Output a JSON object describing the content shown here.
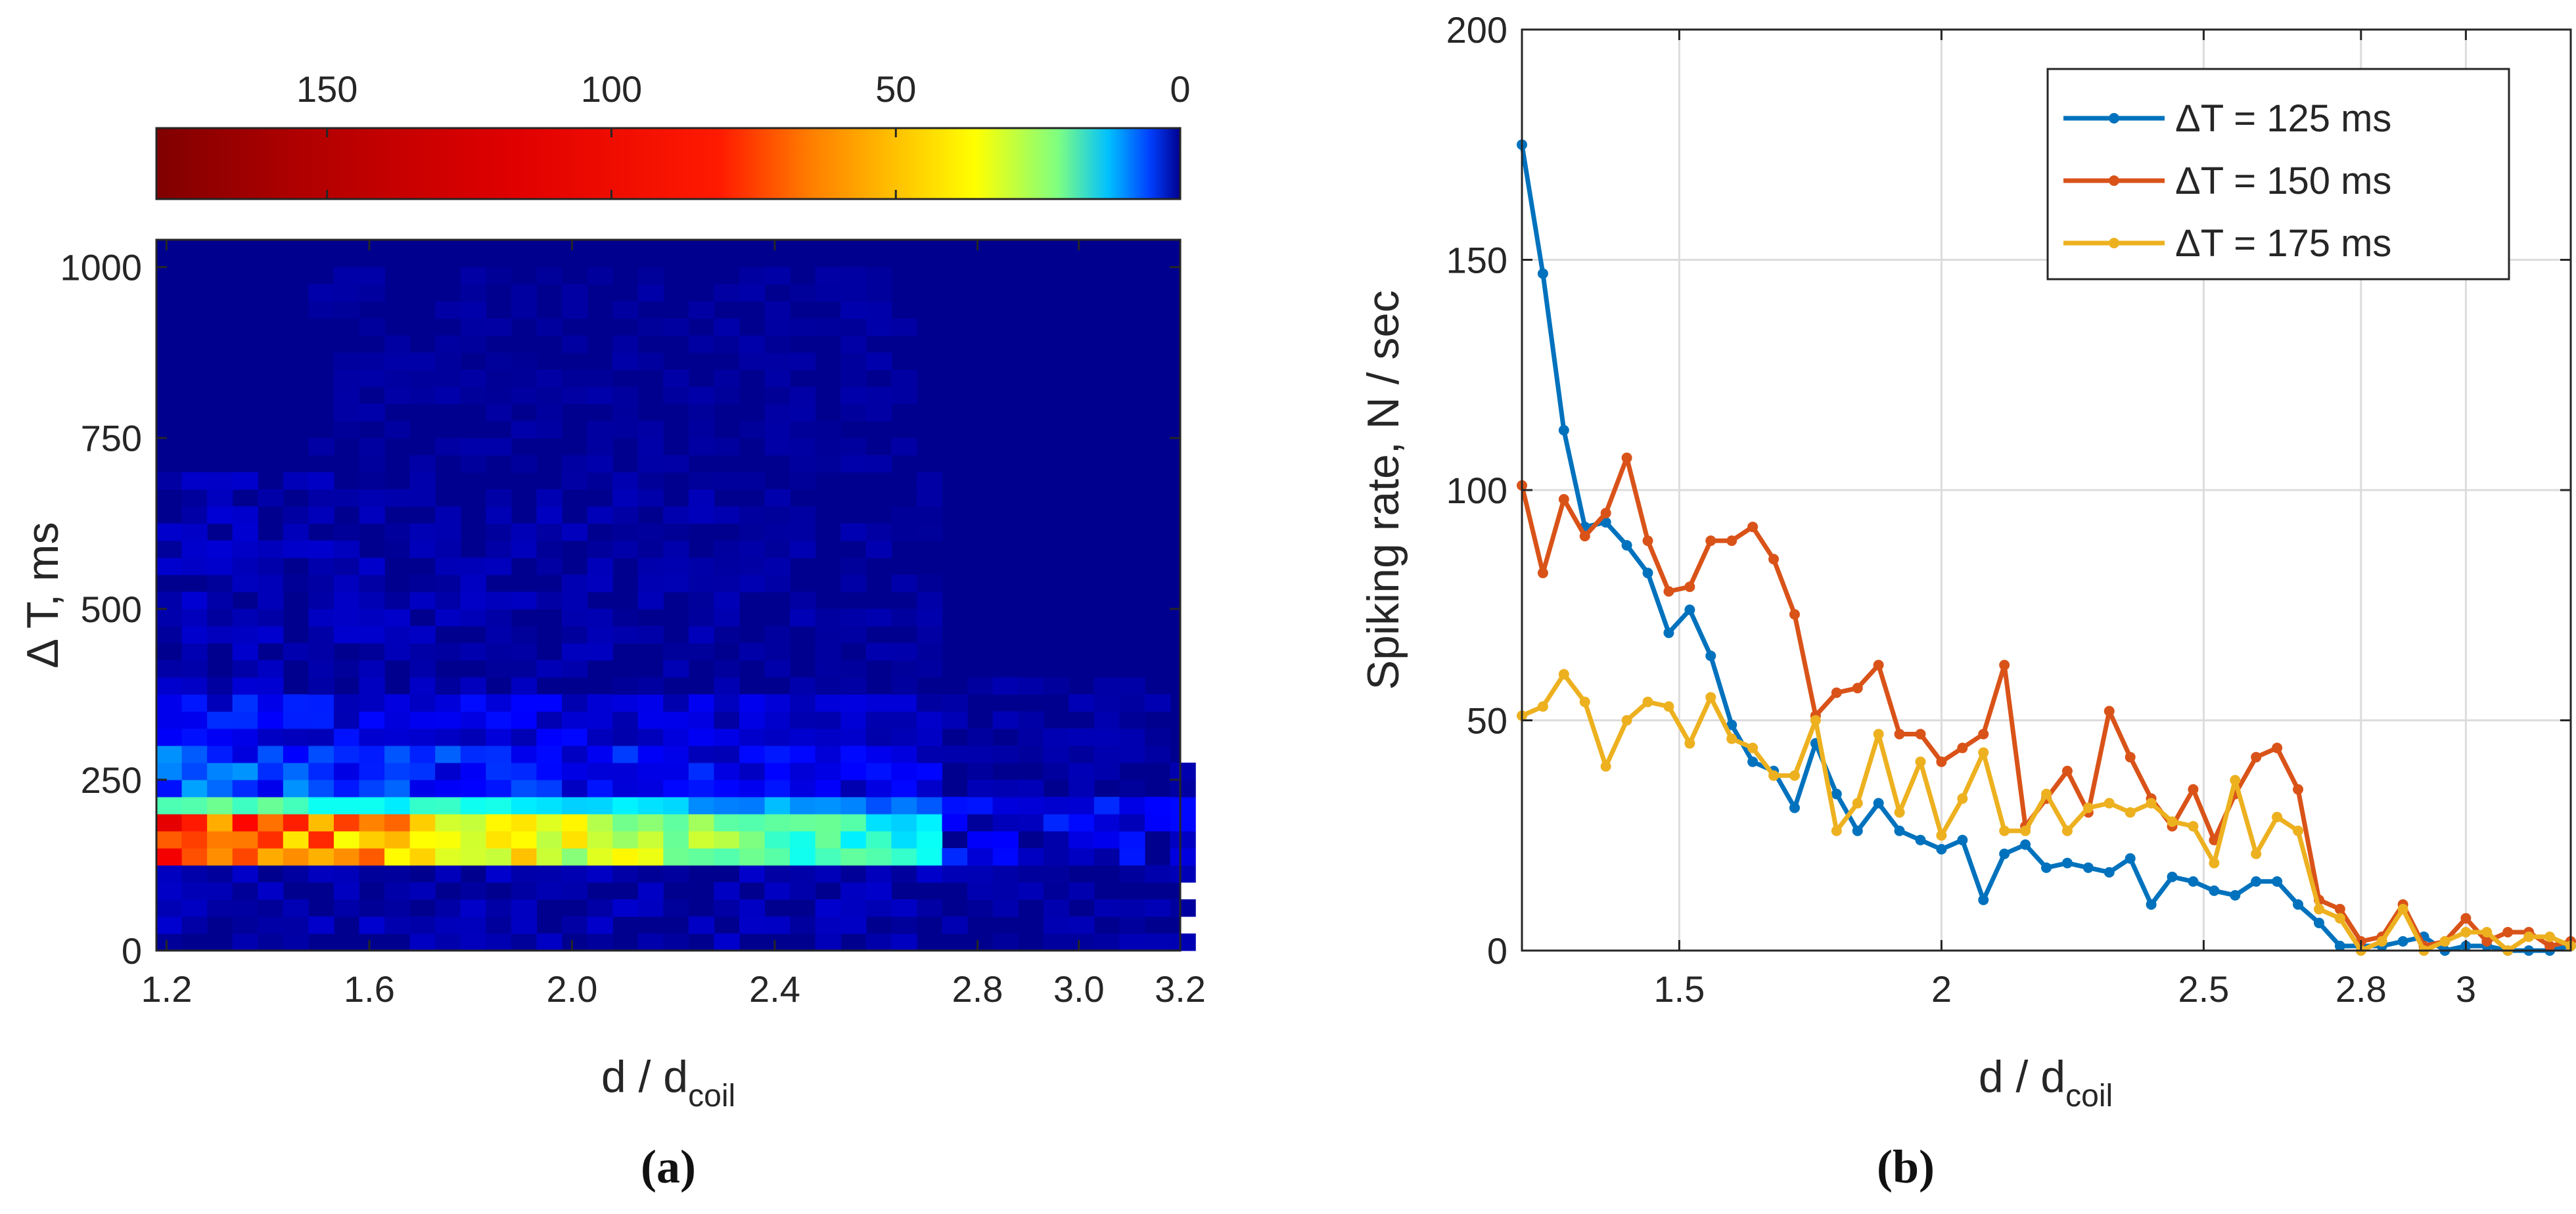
{
  "chart_data": [
    {
      "type": "heatmap",
      "panel_label": "(a)",
      "xlabel": "d / d",
      "xlabel_sub": "coil",
      "ylabel": "Δ T, ms",
      "xlim": [
        1.18,
        3.2
      ],
      "ylim": [
        0,
        1040
      ],
      "xticks": [
        1.2,
        1.6,
        2.0,
        2.4,
        2.8,
        3.0,
        3.2
      ],
      "xtick_labels": [
        "1.2",
        "1.6",
        "2.0",
        "2.4",
        "2.8",
        "3.0",
        "3.2"
      ],
      "yticks": [
        0,
        250,
        500,
        750,
        1000
      ],
      "ytick_labels": [
        "0",
        "250",
        "500",
        "750",
        "1000"
      ],
      "x_bin_width": 0.05,
      "y_bin_width": 25,
      "colorbar": {
        "range": [
          0,
          180
        ],
        "ticks": [
          150,
          100,
          50,
          0
        ],
        "tick_labels": [
          "150",
          "100",
          "50",
          "0"
        ],
        "direction": "reversed",
        "colormap": "jet"
      },
      "grid": false
    },
    {
      "type": "line",
      "panel_label": "(b)",
      "xlabel": "d / d",
      "xlabel_sub": "coil",
      "ylabel": "Spiking rate, N / sec",
      "xlim": [
        1.2,
        3.2
      ],
      "ylim": [
        0,
        200
      ],
      "xticks": [
        1.5,
        2,
        2.5,
        2.8,
        3
      ],
      "xtick_labels": [
        "1.5",
        "2",
        "2.5",
        "2.8",
        "3"
      ],
      "yticks": [
        0,
        50,
        100,
        150,
        200
      ],
      "ytick_labels": [
        "0",
        "50",
        "100",
        "150",
        "200"
      ],
      "grid": true,
      "legend_position": "top-right",
      "x": [
        1.2,
        1.24,
        1.28,
        1.32,
        1.36,
        1.4,
        1.44,
        1.48,
        1.52,
        1.56,
        1.6,
        1.64,
        1.68,
        1.72,
        1.76,
        1.8,
        1.84,
        1.88,
        1.92,
        1.96,
        2.0,
        2.04,
        2.08,
        2.12,
        2.16,
        2.2,
        2.24,
        2.28,
        2.32,
        2.36,
        2.4,
        2.44,
        2.48,
        2.52,
        2.56,
        2.6,
        2.64,
        2.68,
        2.72,
        2.76,
        2.8,
        2.84,
        2.88,
        2.92,
        2.96,
        3.0,
        3.04,
        3.08,
        3.12,
        3.16,
        3.2
      ],
      "series": [
        {
          "name": "ΔT = 125 ms",
          "color": "#0072BD",
          "values": [
            175,
            147,
            113,
            92,
            93,
            88,
            82,
            69,
            74,
            64,
            49,
            41,
            39,
            31,
            45,
            34,
            26,
            32,
            26,
            24,
            22,
            24,
            11,
            21,
            23,
            18,
            19,
            18,
            17,
            20,
            10,
            16,
            15,
            13,
            12,
            15,
            15,
            10,
            6,
            1,
            1,
            1,
            2,
            3,
            0,
            1,
            1,
            0,
            0,
            0,
            1
          ]
        },
        {
          "name": "ΔT = 150 ms",
          "color": "#D95319",
          "values": [
            101,
            82,
            98,
            90,
            95,
            107,
            89,
            78,
            79,
            89,
            89,
            92,
            85,
            73,
            51,
            56,
            57,
            62,
            47,
            47,
            41,
            44,
            47,
            62,
            27,
            33,
            39,
            30,
            52,
            42,
            33,
            27,
            35,
            24,
            34,
            42,
            44,
            35,
            11,
            9,
            2,
            3,
            10,
            1,
            2,
            7,
            2,
            4,
            4,
            1,
            2
          ]
        },
        {
          "name": "ΔT = 175 ms",
          "color": "#EDB120",
          "values": [
            51,
            53,
            60,
            54,
            40,
            50,
            54,
            53,
            45,
            55,
            46,
            44,
            38,
            38,
            50,
            26,
            32,
            47,
            30,
            41,
            25,
            33,
            43,
            26,
            26,
            34,
            26,
            31,
            32,
            30,
            32,
            28,
            27,
            19,
            37,
            21,
            29,
            26,
            9,
            7,
            0,
            2,
            9,
            0,
            2,
            4,
            4,
            0,
            3,
            3,
            1
          ]
        }
      ]
    }
  ]
}
